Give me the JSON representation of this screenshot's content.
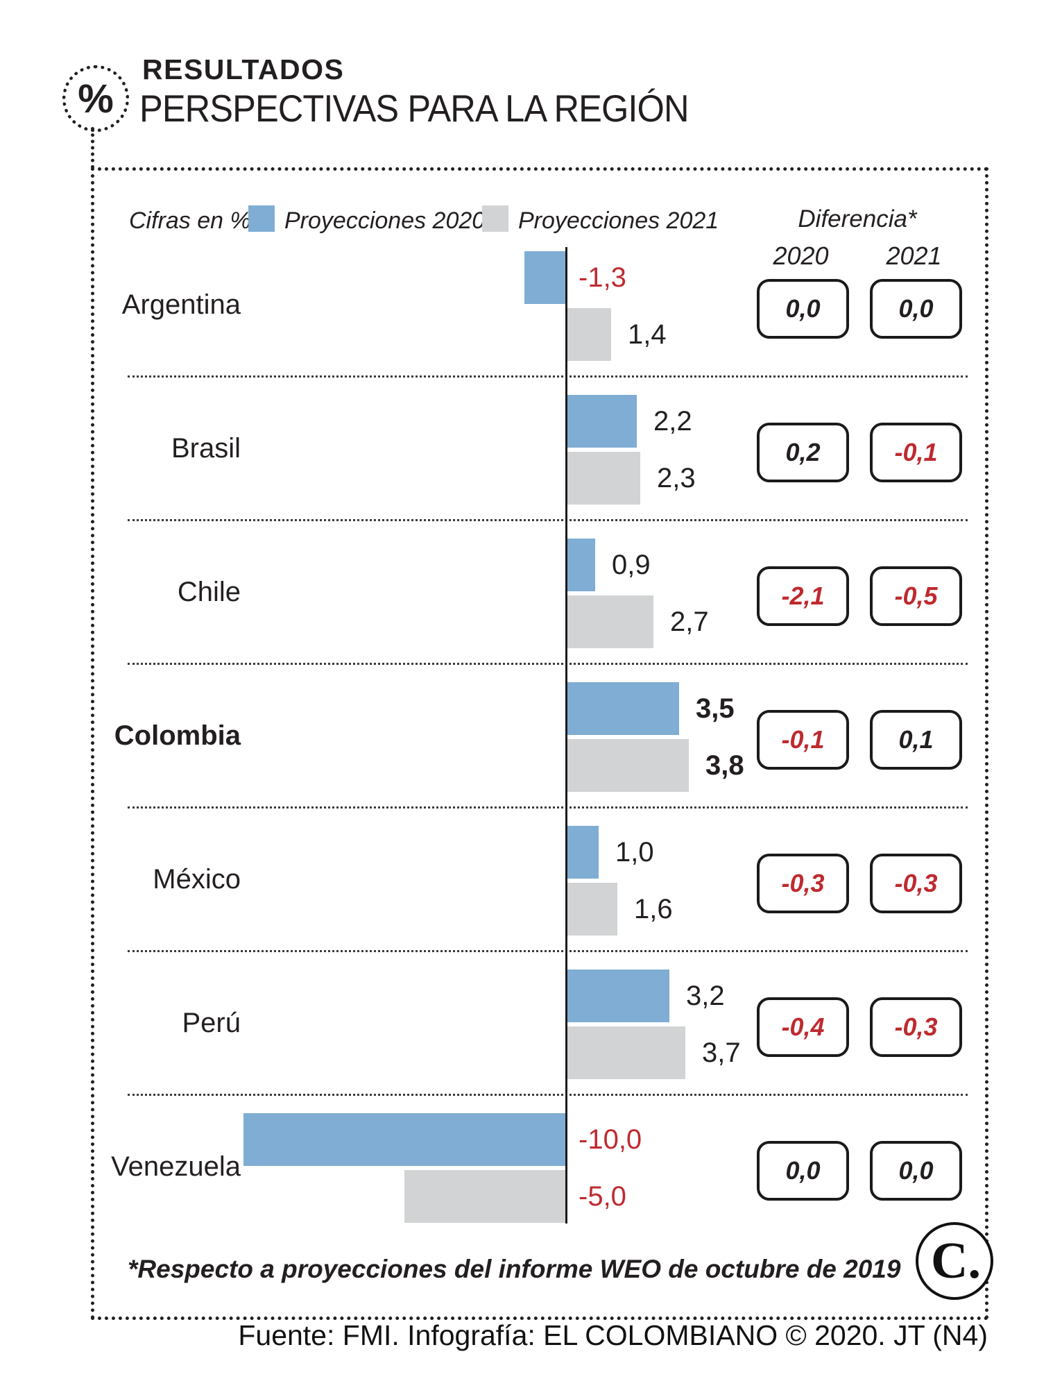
{
  "header": {
    "kicker": "RESULTADOS",
    "title": "PERSPECTIVAS PARA LA REGIÓN",
    "icon_glyph": "%"
  },
  "legend": {
    "units_label": "Cifras en %",
    "series": [
      {
        "label": "Proyecciones 2020",
        "color": "#7FADD3"
      },
      {
        "label": "Proyecciones 2021",
        "color": "#D2D3D4"
      }
    ],
    "difference_label": "Diferencia*",
    "difference_years": [
      "2020",
      "2021"
    ]
  },
  "chart_data": {
    "type": "bar",
    "orientation": "horizontal",
    "unit": "%",
    "categories": [
      "Argentina",
      "Brasil",
      "Chile",
      "Colombia",
      "México",
      "Perú",
      "Venezuela"
    ],
    "series": [
      {
        "name": "Proyecciones 2020",
        "color": "#7FADD3",
        "values": [
          -1.3,
          2.2,
          0.9,
          3.5,
          1.0,
          3.2,
          -10.0
        ]
      },
      {
        "name": "Proyecciones 2021",
        "color": "#D2D3D4",
        "values": [
          1.4,
          2.3,
          2.7,
          3.8,
          1.6,
          3.7,
          -5.0
        ]
      }
    ],
    "differences_vs_weo_oct_2019": {
      "2020": [
        0.0,
        0.2,
        -2.1,
        -0.1,
        -0.3,
        -0.4,
        0.0
      ],
      "2021": [
        0.0,
        -0.1,
        -0.5,
        0.1,
        -0.3,
        -0.3,
        0.0
      ]
    },
    "xlim": [
      -10.5,
      4.5
    ],
    "highlighted_category": "Colombia",
    "negative_value_color": "#BE2A2F"
  },
  "rows": [
    {
      "country": "Argentina",
      "bold": false,
      "bar2020": {
        "value": -1.3,
        "label": "-1,3"
      },
      "bar2021": {
        "value": 1.4,
        "label": "1,4"
      },
      "diff2020": "0,0",
      "diff2021": "0,0"
    },
    {
      "country": "Brasil",
      "bold": false,
      "bar2020": {
        "value": 2.2,
        "label": "2,2"
      },
      "bar2021": {
        "value": 2.3,
        "label": "2,3"
      },
      "diff2020": "0,2",
      "diff2021": "-0,1"
    },
    {
      "country": "Chile",
      "bold": false,
      "bar2020": {
        "value": 0.9,
        "label": "0,9"
      },
      "bar2021": {
        "value": 2.7,
        "label": "2,7"
      },
      "diff2020": "-2,1",
      "diff2021": "-0,5"
    },
    {
      "country": "Colombia",
      "bold": true,
      "bar2020": {
        "value": 3.5,
        "label": "3,5"
      },
      "bar2021": {
        "value": 3.8,
        "label": "3,8"
      },
      "diff2020": "-0,1",
      "diff2021": "0,1"
    },
    {
      "country": "México",
      "bold": false,
      "bar2020": {
        "value": 1.0,
        "label": "1,0"
      },
      "bar2021": {
        "value": 1.6,
        "label": "1,6"
      },
      "diff2020": "-0,3",
      "diff2021": "-0,3"
    },
    {
      "country": "Perú",
      "bold": false,
      "bar2020": {
        "value": 3.2,
        "label": "3,2"
      },
      "bar2021": {
        "value": 3.7,
        "label": "3,7"
      },
      "diff2020": "-0,4",
      "diff2021": "-0,3"
    },
    {
      "country": "Venezuela",
      "bold": false,
      "bar2020": {
        "value": -10.0,
        "label": "-10,0"
      },
      "bar2021": {
        "value": -5.0,
        "label": "-5,0"
      },
      "diff2020": "0,0",
      "diff2021": "0,0"
    }
  ],
  "footnote": "*Respecto a proyecciones del informe WEO de octubre de 2019",
  "source": "Fuente: FMI. Infografía: EL COLOMBIANO © 2020. JT (N4)",
  "logo": {
    "text": "C."
  },
  "colors": {
    "blue": "#7FADD3",
    "gray": "#D2D3D4",
    "red": "#BE2A2F",
    "ink": "#1A1A1A"
  }
}
